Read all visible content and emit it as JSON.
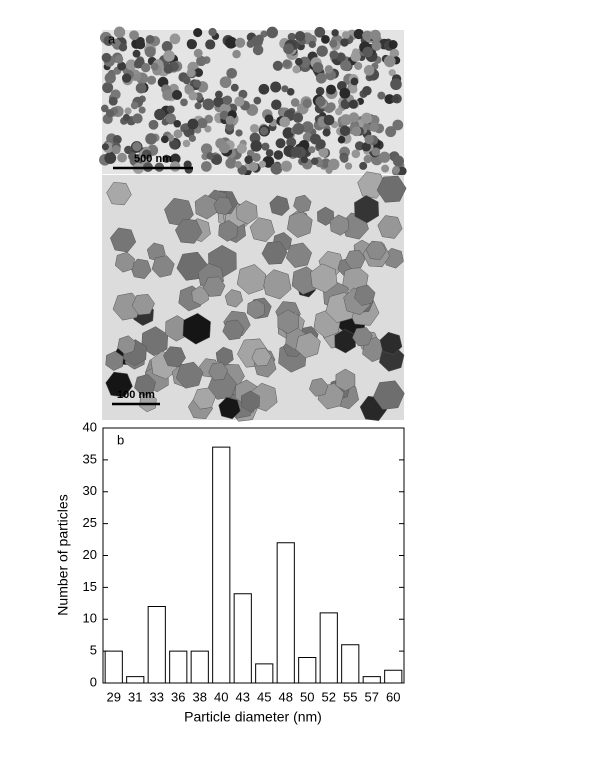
{
  "images": [
    {
      "label": "a",
      "scale_bar": "500 nm"
    },
    {
      "scale_bar": "100 nm"
    }
  ],
  "chart_data": {
    "type": "bar",
    "categories": [
      "29",
      "31",
      "33",
      "36",
      "38",
      "40",
      "43",
      "45",
      "48",
      "50",
      "52",
      "55",
      "57",
      "60"
    ],
    "values": [
      5,
      1,
      12,
      5,
      5,
      37,
      14,
      3,
      22,
      4,
      11,
      6,
      1,
      2
    ],
    "color": "#ffffff",
    "ylim": [
      0,
      40
    ],
    "yticks": [
      0,
      5,
      10,
      15,
      20,
      25,
      30,
      35,
      40
    ],
    "xlabel": "Particle diameter (nm)",
    "ylabel": "Number of particles",
    "annotations": [
      "b"
    ]
  }
}
